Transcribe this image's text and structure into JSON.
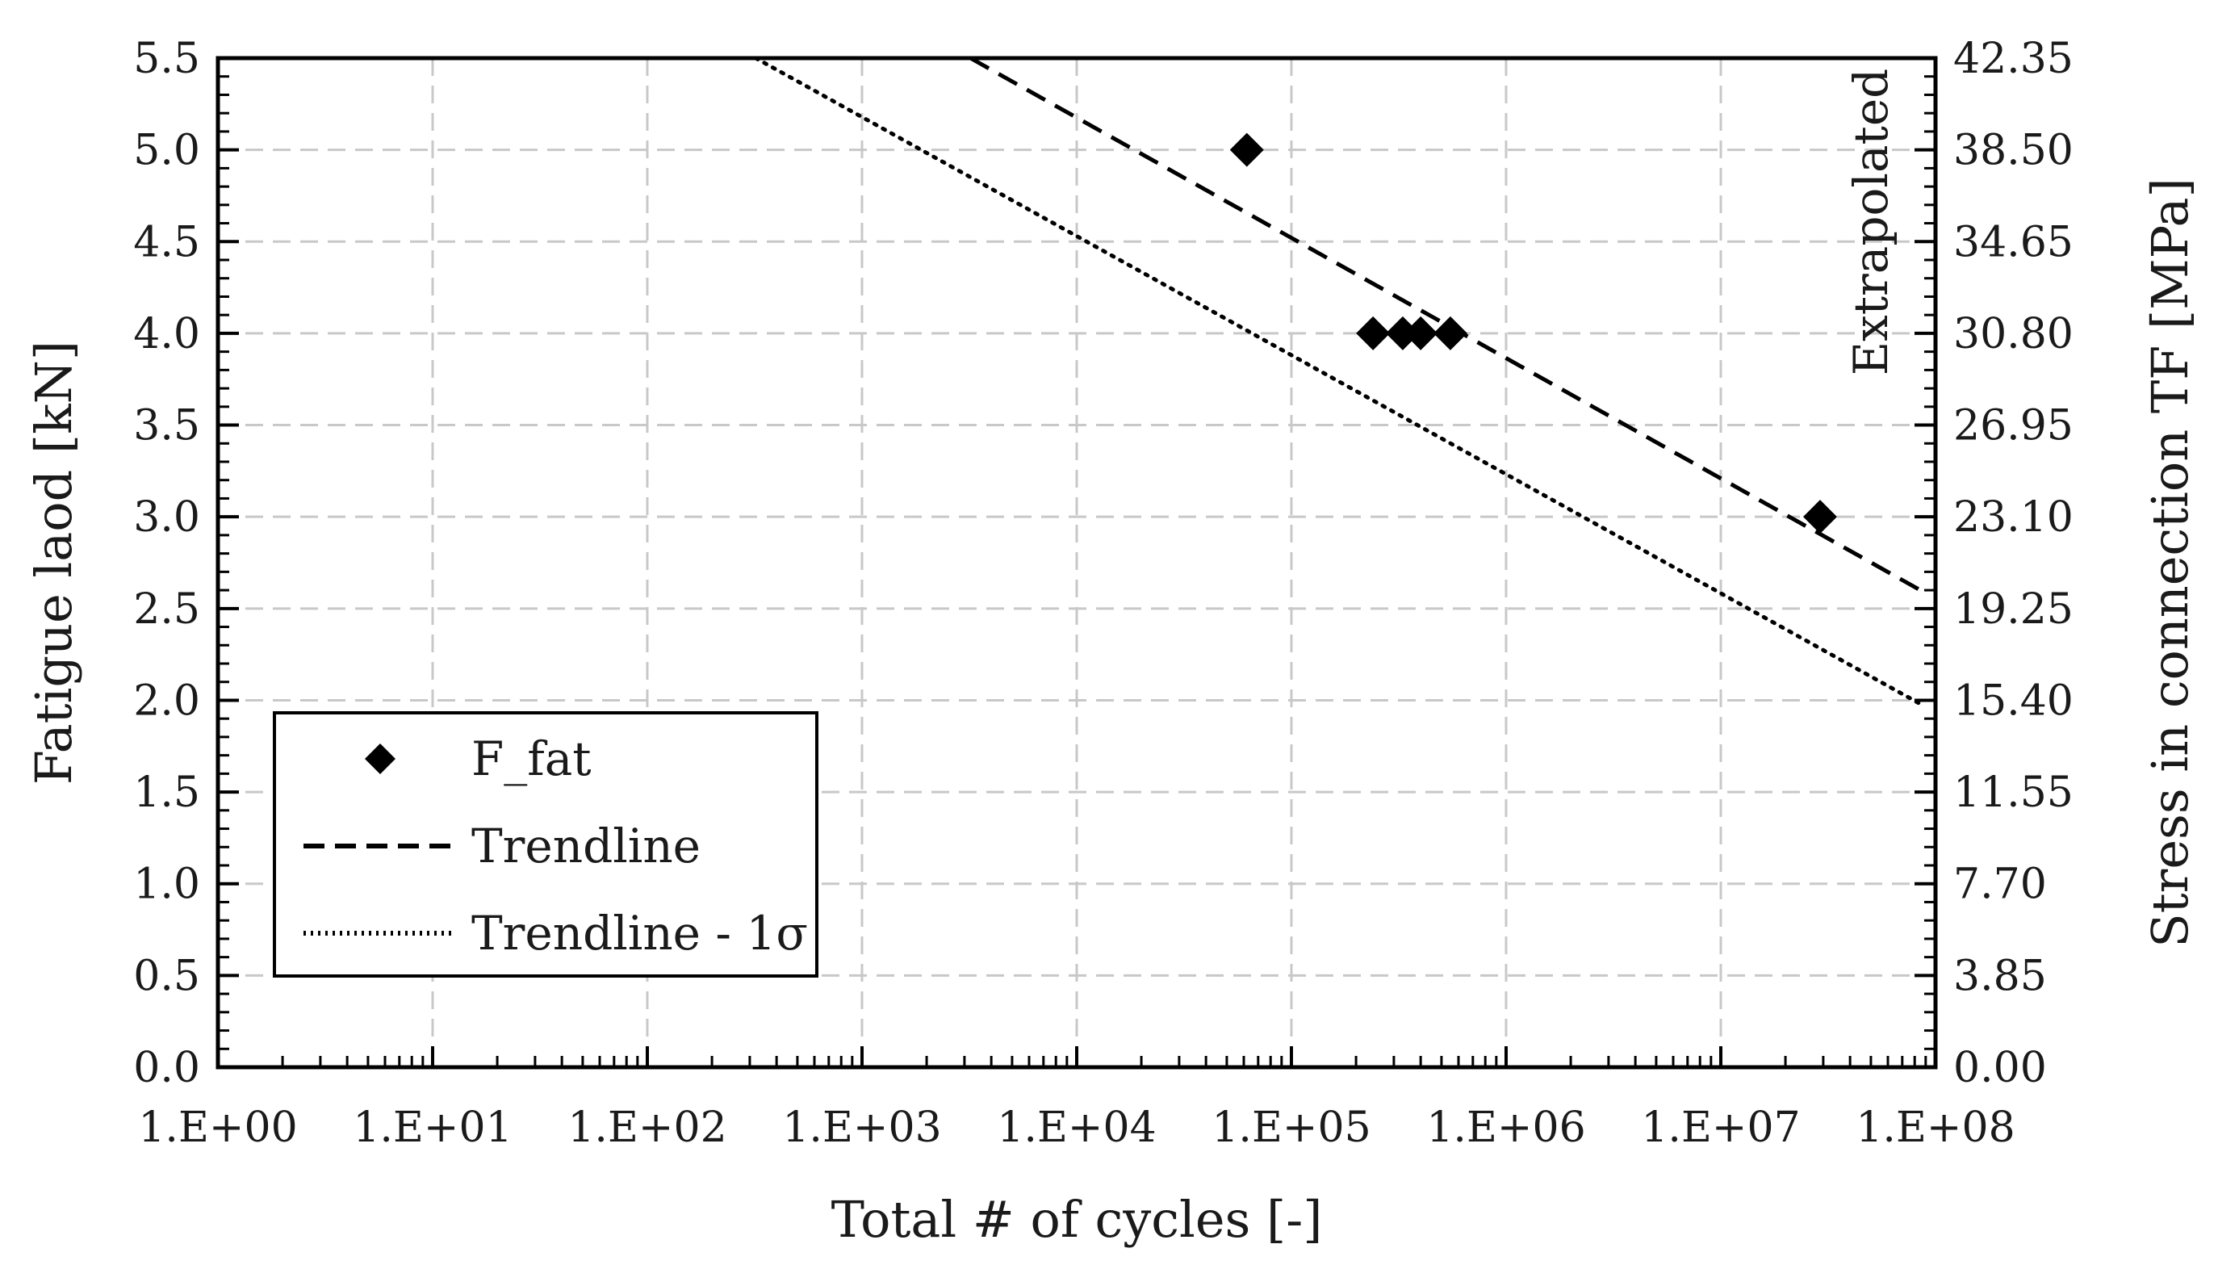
{
  "chart_data": {
    "type": "scatter",
    "xlabel": "Total # of cycles [-]",
    "ylabel": "Fatigue laod [kN]",
    "y2label": "Stress in connection TF [MPa]",
    "x_scale": "log",
    "xlim": [
      1,
      100000000
    ],
    "ylim": [
      0,
      5.5
    ],
    "y2lim": [
      0,
      42.35
    ],
    "grid": true,
    "legend_position": "bottom-left",
    "x_tick_values": [
      1,
      10,
      100,
      1000,
      10000,
      100000,
      1000000,
      10000000,
      100000000
    ],
    "x_tick_labels": [
      "1.E+00",
      "1.E+01",
      "1.E+02",
      "1.E+03",
      "1.E+04",
      "1.E+05",
      "1.E+06",
      "1.E+07",
      "1.E+08"
    ],
    "y_tick_values": [
      0,
      0.5,
      1,
      1.5,
      2,
      2.5,
      3,
      3.5,
      4,
      4.5,
      5,
      5.5
    ],
    "y_tick_labels": [
      "0.0",
      "0.5",
      "1.0",
      "1.5",
      "2.0",
      "2.5",
      "3.0",
      "3.5",
      "4.0",
      "4.5",
      "5.0",
      "5.5"
    ],
    "y2_tick_labels": [
      "0.00",
      "3.85",
      "7.70",
      "11.55",
      "15.40",
      "19.25",
      "23.10",
      "26.95",
      "30.80",
      "34.65",
      "38.50",
      "42.35"
    ],
    "annotation": "Extrapolated",
    "series": [
      {
        "name": "F_fat",
        "type": "scatter",
        "marker": "diamond",
        "x": [
          62000,
          240000,
          330000,
          400000,
          550000,
          29000000
        ],
        "y": [
          5.0,
          4.0,
          4.0,
          4.0,
          4.0,
          3.0
        ]
      },
      {
        "name": "Trendline",
        "type": "line",
        "style": "dashed",
        "x": [
          3200,
          85000000
        ],
        "y": [
          5.5,
          2.6
        ]
      },
      {
        "name": "Trendline - 1σ",
        "type": "line",
        "style": "dotted",
        "x": [
          320,
          85000000
        ],
        "y": [
          5.5,
          1.98
        ]
      }
    ]
  }
}
